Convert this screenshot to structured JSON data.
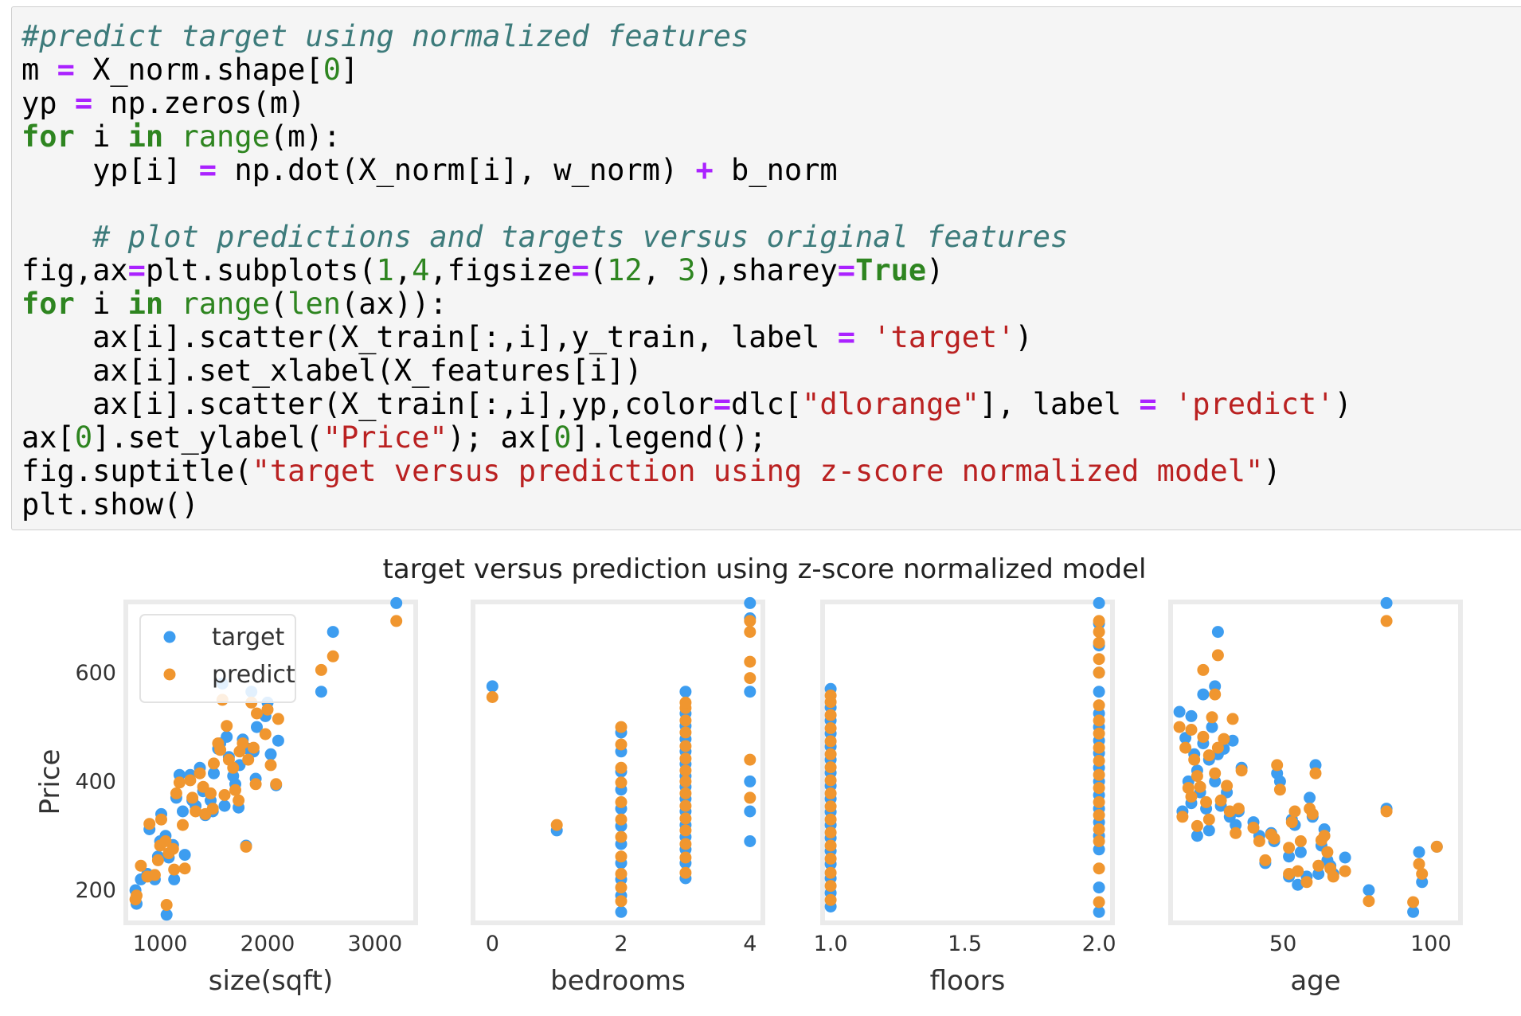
{
  "code_lines": [
    [
      {
        "c": "cm",
        "t": "#predict target using normalized features"
      }
    ],
    [
      {
        "t": "m "
      },
      {
        "c": "op",
        "t": "="
      },
      {
        "t": " X_norm.shape["
      },
      {
        "c": "num",
        "t": "0"
      },
      {
        "t": "]"
      }
    ],
    [
      {
        "t": "yp "
      },
      {
        "c": "op",
        "t": "="
      },
      {
        "t": " np.zeros(m)"
      }
    ],
    [
      {
        "c": "kw",
        "t": "for"
      },
      {
        "t": " i "
      },
      {
        "c": "kw",
        "t": "in"
      },
      {
        "t": " "
      },
      {
        "c": "bi",
        "t": "range"
      },
      {
        "t": "(m):"
      }
    ],
    [
      {
        "t": "    yp[i] "
      },
      {
        "c": "op",
        "t": "="
      },
      {
        "t": " np.dot(X_norm[i], w_norm) "
      },
      {
        "c": "op",
        "t": "+"
      },
      {
        "t": " b_norm"
      }
    ],
    [
      {
        "t": ""
      }
    ],
    [
      {
        "t": "    "
      },
      {
        "c": "cm",
        "t": "# plot predictions and targets versus original features"
      }
    ],
    [
      {
        "t": "fig,ax"
      },
      {
        "c": "op",
        "t": "="
      },
      {
        "t": "plt.subplots("
      },
      {
        "c": "num",
        "t": "1"
      },
      {
        "t": ","
      },
      {
        "c": "num",
        "t": "4"
      },
      {
        "t": ",figsize"
      },
      {
        "c": "op",
        "t": "="
      },
      {
        "t": "("
      },
      {
        "c": "num",
        "t": "12"
      },
      {
        "t": ", "
      },
      {
        "c": "num",
        "t": "3"
      },
      {
        "t": "),sharey"
      },
      {
        "c": "op",
        "t": "="
      },
      {
        "c": "kw",
        "t": "True"
      },
      {
        "t": ")"
      }
    ],
    [
      {
        "c": "kw",
        "t": "for"
      },
      {
        "t": " i "
      },
      {
        "c": "kw",
        "t": "in"
      },
      {
        "t": " "
      },
      {
        "c": "bi",
        "t": "range"
      },
      {
        "t": "("
      },
      {
        "c": "bi",
        "t": "len"
      },
      {
        "t": "(ax)):"
      }
    ],
    [
      {
        "t": "    ax[i].scatter(X_train[:,i],y_train, label "
      },
      {
        "c": "op",
        "t": "="
      },
      {
        "t": " "
      },
      {
        "c": "str",
        "t": "'target'"
      },
      {
        "t": ")"
      }
    ],
    [
      {
        "t": "    ax[i].set_xlabel(X_features[i])"
      }
    ],
    [
      {
        "t": "    ax[i].scatter(X_train[:,i],yp,color"
      },
      {
        "c": "op",
        "t": "="
      },
      {
        "t": "dlc["
      },
      {
        "c": "str",
        "t": "\"dlorange\""
      },
      {
        "t": "], label "
      },
      {
        "c": "op",
        "t": "="
      },
      {
        "t": " "
      },
      {
        "c": "str",
        "t": "'predict'"
      },
      {
        "t": ")"
      }
    ],
    [
      {
        "t": "ax["
      },
      {
        "c": "num",
        "t": "0"
      },
      {
        "t": "].set_ylabel("
      },
      {
        "c": "str",
        "t": "\"Price\""
      },
      {
        "t": "); ax["
      },
      {
        "c": "num",
        "t": "0"
      },
      {
        "t": "].legend();"
      }
    ],
    [
      {
        "t": "fig.suptitle("
      },
      {
        "c": "str",
        "t": "\"target versus prediction using z-score normalized model\""
      },
      {
        "t": ")"
      }
    ],
    [
      {
        "t": "plt.show()"
      }
    ]
  ],
  "chart_data": {
    "type": "scatter",
    "suptitle": "target versus prediction using z-score normalized model",
    "ylabel": "Price",
    "ylim": [
      140,
      730
    ],
    "yticks": [
      200,
      400,
      600
    ],
    "yticklabels": [
      "200",
      "400",
      "600"
    ],
    "legend": {
      "placement": "upper-left",
      "entries": [
        "target",
        "predict"
      ]
    },
    "colors": {
      "target": "#3d9df0",
      "predict": "#f0962f"
    },
    "subplots": [
      {
        "xlabel": "size(sqft)",
        "xlim": [
          680,
          3380
        ],
        "xticks": [
          1000,
          2000,
          3000
        ],
        "xticklabels": [
          "1000",
          "2000",
          "3000"
        ],
        "points": [
          [
            770,
            200,
            183
          ],
          [
            780,
            175,
            190
          ],
          [
            820,
            220,
            245
          ],
          [
            880,
            230,
            225
          ],
          [
            900,
            312,
            322
          ],
          [
            950,
            220,
            228
          ],
          [
            980,
            262,
            255
          ],
          [
            1000,
            290,
            282
          ],
          [
            1010,
            340,
            330
          ],
          [
            1050,
            300,
            290
          ],
          [
            1060,
            155,
            173
          ],
          [
            1080,
            260,
            268
          ],
          [
            1120,
            283,
            276
          ],
          [
            1130,
            220,
            238
          ],
          [
            1150,
            370,
            378
          ],
          [
            1180,
            412,
            398
          ],
          [
            1210,
            345,
            320
          ],
          [
            1230,
            265,
            240
          ],
          [
            1280,
            412,
            402
          ],
          [
            1300,
            365,
            370
          ],
          [
            1330,
            355,
            345
          ],
          [
            1370,
            425,
            415
          ],
          [
            1400,
            382,
            390
          ],
          [
            1420,
            338,
            340
          ],
          [
            1470,
            365,
            378
          ],
          [
            1490,
            345,
            350
          ],
          [
            1500,
            415,
            433
          ],
          [
            1540,
            460,
            470
          ],
          [
            1560,
            470,
            458
          ],
          [
            1580,
            580,
            550
          ],
          [
            1600,
            355,
            375
          ],
          [
            1620,
            482,
            502
          ],
          [
            1640,
            445,
            440
          ],
          [
            1680,
            410,
            425
          ],
          [
            1700,
            395,
            384
          ],
          [
            1730,
            352,
            365
          ],
          [
            1740,
            430,
            455
          ],
          [
            1770,
            477,
            470
          ],
          [
            1800,
            282,
            280
          ],
          [
            1820,
            460,
            440
          ],
          [
            1850,
            565,
            545
          ],
          [
            1870,
            455,
            462
          ],
          [
            1890,
            405,
            395
          ],
          [
            1900,
            500,
            525
          ],
          [
            1980,
            520,
            487
          ],
          [
            2000,
            545,
            532
          ],
          [
            2030,
            450,
            430
          ],
          [
            2080,
            393,
            395
          ],
          [
            2100,
            475,
            515
          ],
          [
            2500,
            565,
            605
          ],
          [
            2610,
            675,
            630
          ],
          [
            3200,
            728,
            695
          ]
        ]
      },
      {
        "xlabel": "bedrooms",
        "xlim": [
          -0.3,
          4.2
        ],
        "xticks": [
          0,
          2,
          4
        ],
        "xticklabels": [
          "0",
          "2",
          "4"
        ],
        "points": [
          [
            0,
            575,
            555
          ],
          [
            1,
            310,
            320
          ],
          [
            2,
            160,
            180
          ],
          [
            2,
            190,
            205
          ],
          [
            2,
            220,
            230
          ],
          [
            2,
            250,
            262
          ],
          [
            2,
            285,
            298
          ],
          [
            2,
            318,
            330
          ],
          [
            2,
            350,
            362
          ],
          [
            2,
            385,
            398
          ],
          [
            2,
            418,
            425
          ],
          [
            2,
            455,
            468
          ],
          [
            2,
            490,
            500
          ],
          [
            3,
            222,
            232
          ],
          [
            3,
            250,
            260
          ],
          [
            3,
            275,
            285
          ],
          [
            3,
            298,
            310
          ],
          [
            3,
            320,
            332
          ],
          [
            3,
            345,
            355
          ],
          [
            3,
            368,
            378
          ],
          [
            3,
            390,
            400
          ],
          [
            3,
            410,
            420
          ],
          [
            3,
            432,
            442
          ],
          [
            3,
            455,
            465
          ],
          [
            3,
            478,
            490
          ],
          [
            3,
            502,
            512
          ],
          [
            3,
            525,
            535
          ],
          [
            3,
            565,
            545
          ],
          [
            4,
            728,
            695
          ],
          [
            4,
            700,
            675
          ],
          [
            4,
            565,
            620
          ],
          [
            4,
            400,
            590
          ],
          [
            4,
            345,
            440
          ],
          [
            4,
            290,
            370
          ]
        ]
      },
      {
        "xlabel": "floors",
        "xlim": [
          0.97,
          2.05
        ],
        "xticks": [
          1.0,
          1.5,
          2.0
        ],
        "xticklabels": [
          "1.0",
          "1.5",
          "2.0"
        ],
        "points": [
          [
            1,
            170,
            182
          ],
          [
            1,
            195,
            208
          ],
          [
            1,
            222,
            232
          ],
          [
            1,
            248,
            258
          ],
          [
            1,
            272,
            282
          ],
          [
            1,
            296,
            306
          ],
          [
            1,
            320,
            330
          ],
          [
            1,
            344,
            354
          ],
          [
            1,
            368,
            378
          ],
          [
            1,
            392,
            402
          ],
          [
            1,
            416,
            426
          ],
          [
            1,
            440,
            450
          ],
          [
            1,
            464,
            474
          ],
          [
            1,
            488,
            498
          ],
          [
            1,
            512,
            522
          ],
          [
            1,
            536,
            546
          ],
          [
            1,
            570,
            558
          ],
          [
            2,
            160,
            178
          ],
          [
            2,
            205,
            240
          ],
          [
            2,
            275,
            290
          ],
          [
            2,
            300,
            312
          ],
          [
            2,
            325,
            338
          ],
          [
            2,
            350,
            362
          ],
          [
            2,
            375,
            388
          ],
          [
            2,
            400,
            412
          ],
          [
            2,
            425,
            438
          ],
          [
            2,
            452,
            462
          ],
          [
            2,
            475,
            488
          ],
          [
            2,
            500,
            512
          ],
          [
            2,
            525,
            540
          ],
          [
            2,
            565,
            600
          ],
          [
            2,
            600,
            625
          ],
          [
            2,
            650,
            655
          ],
          [
            2,
            690,
            675
          ],
          [
            2,
            728,
            695
          ]
        ]
      },
      {
        "xlabel": "age",
        "xlim": [
          12,
          110
        ],
        "xticks": [
          50,
          100
        ],
        "xticklabels": [
          "50",
          "100"
        ],
        "points": [
          [
            15,
            528,
            500
          ],
          [
            16,
            345,
            335
          ],
          [
            17,
            480,
            462
          ],
          [
            18,
            400,
            388
          ],
          [
            19,
            520,
            495
          ],
          [
            19,
            360,
            372
          ],
          [
            20,
            450,
            440
          ],
          [
            21,
            300,
            318
          ],
          [
            21,
            420,
            410
          ],
          [
            22,
            380,
            390
          ],
          [
            23,
            560,
            605
          ],
          [
            23,
            470,
            482
          ],
          [
            24,
            350,
            362
          ],
          [
            25,
            440,
            448
          ],
          [
            25,
            310,
            330
          ],
          [
            26,
            500,
            518
          ],
          [
            27,
            575,
            560
          ],
          [
            27,
            400,
            415
          ],
          [
            28,
            450,
            462
          ],
          [
            28,
            675,
            632
          ],
          [
            29,
            355,
            365
          ],
          [
            30,
            460,
            478
          ],
          [
            31,
            380,
            392
          ],
          [
            32,
            335,
            345
          ],
          [
            33,
            475,
            515
          ],
          [
            34,
            320,
            305
          ],
          [
            35,
            345,
            350
          ],
          [
            36,
            425,
            420
          ],
          [
            40,
            325,
            315
          ],
          [
            42,
            300,
            290
          ],
          [
            44,
            250,
            255
          ],
          [
            46,
            305,
            302
          ],
          [
            47,
            290,
            295
          ],
          [
            48,
            415,
            430
          ],
          [
            49,
            400,
            385
          ],
          [
            52,
            225,
            230
          ],
          [
            52,
            262,
            278
          ],
          [
            53,
            330,
            325
          ],
          [
            54,
            320,
            345
          ],
          [
            55,
            210,
            235
          ],
          [
            56,
            270,
            290
          ],
          [
            58,
            225,
            215
          ],
          [
            59,
            370,
            350
          ],
          [
            60,
            335,
            340
          ],
          [
            61,
            430,
            415
          ],
          [
            62,
            230,
            245
          ],
          [
            63,
            282,
            292
          ],
          [
            64,
            312,
            300
          ],
          [
            65,
            255,
            270
          ],
          [
            66,
            245,
            240
          ],
          [
            67,
            230,
            225
          ],
          [
            71,
            260,
            235
          ],
          [
            79,
            200,
            180
          ],
          [
            85,
            728,
            695
          ],
          [
            85,
            350,
            345
          ],
          [
            94,
            160,
            178
          ],
          [
            96,
            270,
            248
          ],
          [
            97,
            215,
            230
          ],
          [
            102,
            280,
            280
          ]
        ]
      }
    ]
  }
}
